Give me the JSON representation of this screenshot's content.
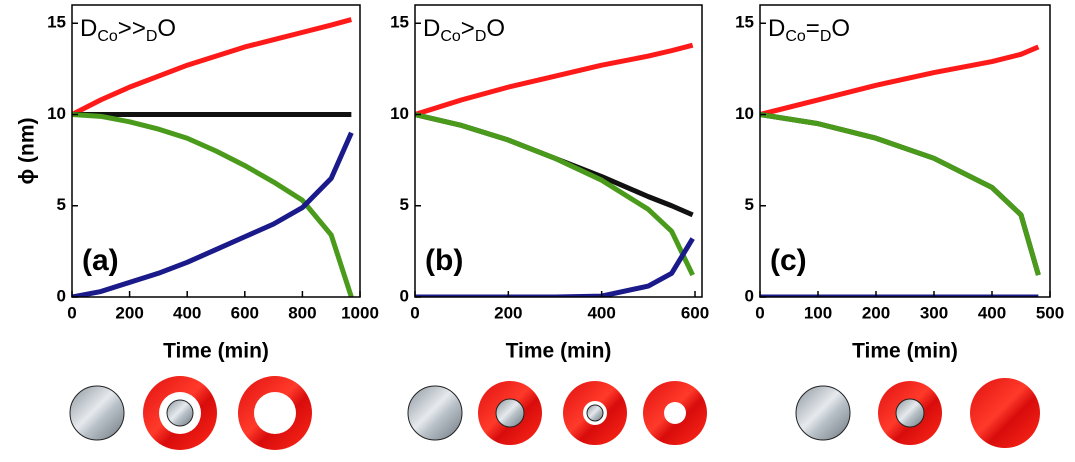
{
  "chart_data": [
    {
      "type": "line",
      "title_parts": [
        "D",
        "Co",
        ">>",
        "D",
        "O"
      ],
      "annotation": "(a)",
      "ylabel": "ϕ (nm)",
      "xlabel": "Time (min)",
      "x": [
        0,
        100,
        200,
        300,
        400,
        500,
        600,
        700,
        800,
        900,
        970
      ],
      "xlim": [
        0,
        1000
      ],
      "xticks": [
        0,
        200,
        400,
        600,
        800,
        1000
      ],
      "ylim": [
        0,
        16
      ],
      "yticks": [
        0,
        5,
        10,
        15
      ],
      "series": [
        {
          "color": "#ff1a1a",
          "values": [
            10,
            10.8,
            11.5,
            12.1,
            12.7,
            13.2,
            13.7,
            14.1,
            14.5,
            14.9,
            15.2
          ]
        },
        {
          "color": "#111111",
          "values": [
            10,
            10,
            10,
            10,
            10,
            10,
            10,
            10,
            10,
            10,
            10
          ]
        },
        {
          "color": "#4a9a1c",
          "values": [
            10,
            9.9,
            9.6,
            9.2,
            8.7,
            8.0,
            7.2,
            6.3,
            5.3,
            3.4,
            0
          ]
        },
        {
          "color": "#1a1a8a",
          "values": [
            0,
            0.3,
            0.8,
            1.3,
            1.9,
            2.6,
            3.3,
            4.0,
            4.9,
            6.5,
            9.0
          ]
        }
      ]
    },
    {
      "type": "line",
      "title_parts": [
        "D",
        "Co",
        ">",
        "D",
        "O"
      ],
      "annotation": "(b)",
      "xlabel": "Time (min)",
      "x": [
        0,
        100,
        200,
        300,
        400,
        500,
        550,
        595
      ],
      "xlim": [
        0,
        615
      ],
      "xticks": [
        0,
        200,
        400,
        600
      ],
      "ylim": [
        0,
        16
      ],
      "yticks": [
        0,
        5,
        10,
        15
      ],
      "series": [
        {
          "color": "#ff1a1a",
          "values": [
            10,
            10.8,
            11.5,
            12.1,
            12.7,
            13.2,
            13.5,
            13.8
          ]
        },
        {
          "color": "#111111",
          "values": [
            10,
            9.4,
            8.6,
            7.6,
            6.6,
            5.5,
            5.0,
            4.5
          ]
        },
        {
          "color": "#4a9a1c",
          "values": [
            10,
            9.4,
            8.6,
            7.6,
            6.4,
            4.8,
            3.6,
            1.2
          ]
        },
        {
          "color": "#1a1a8a",
          "values": [
            0,
            0,
            0,
            0,
            0.05,
            0.6,
            1.3,
            3.2
          ]
        }
      ]
    },
    {
      "type": "line",
      "title_parts": [
        "D",
        "Co",
        "=",
        "D",
        "O"
      ],
      "annotation": "(c)",
      "xlabel": "Time (min)",
      "x": [
        0,
        100,
        200,
        300,
        400,
        450,
        480
      ],
      "xlim": [
        0,
        500
      ],
      "xticks": [
        0,
        100,
        200,
        300,
        400,
        500
      ],
      "ylim": [
        0,
        16
      ],
      "yticks": [
        0,
        5,
        10,
        15
      ],
      "series": [
        {
          "color": "#ff1a1a",
          "values": [
            10,
            10.8,
            11.6,
            12.3,
            12.9,
            13.3,
            13.7
          ]
        },
        {
          "color": "#111111",
          "values": [
            10,
            9.5,
            8.7,
            7.6,
            6.0,
            4.5,
            1.2
          ]
        },
        {
          "color": "#4a9a1c",
          "values": [
            10,
            9.5,
            8.7,
            7.6,
            6.0,
            4.5,
            1.2
          ]
        },
        {
          "color": "#1a1a8a",
          "values": [
            0,
            0,
            0,
            0,
            0,
            0,
            0
          ]
        }
      ]
    }
  ]
}
